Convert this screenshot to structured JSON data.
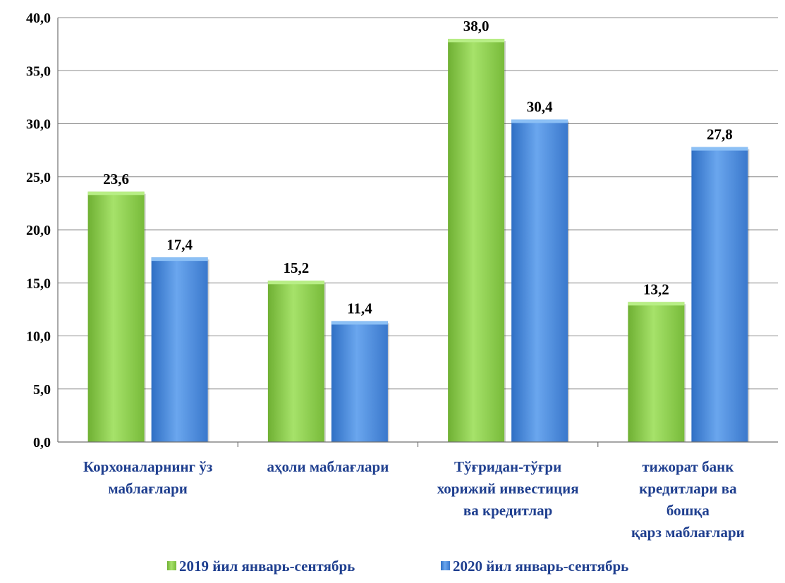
{
  "chart_data": {
    "type": "bar",
    "categories": [
      [
        "Корхоналарнинг ўз",
        "маблағлари"
      ],
      [
        "аҳоли маблағлари"
      ],
      [
        "Тўғридан-тўғри",
        "хорижий инвестиция",
        "ва кредитлар"
      ],
      [
        "тижорат банк",
        "кредитлари ва",
        "бошқа",
        "қарз маблағлари"
      ]
    ],
    "series": [
      {
        "name": "2019 йил январь-сентябрь",
        "values": [
          23.6,
          15.2,
          38.0,
          13.2
        ],
        "labels": [
          "23,6",
          "15,2",
          "38,0",
          "13,2"
        ],
        "color": "#8fd14f"
      },
      {
        "name": "2020 йил январь-сентябрь",
        "values": [
          17.4,
          11.4,
          30.4,
          27.8
        ],
        "labels": [
          "17,4",
          "11,4",
          "30,4",
          "27,8"
        ],
        "color": "#4f8fdc"
      }
    ],
    "ylim": [
      0,
      40
    ],
    "yticks": [
      "0,0",
      "5,0",
      "10,0",
      "15,0",
      "20,0",
      "25,0",
      "30,0",
      "35,0",
      "40,0"
    ],
    "grid": true,
    "legend_position": "bottom"
  }
}
